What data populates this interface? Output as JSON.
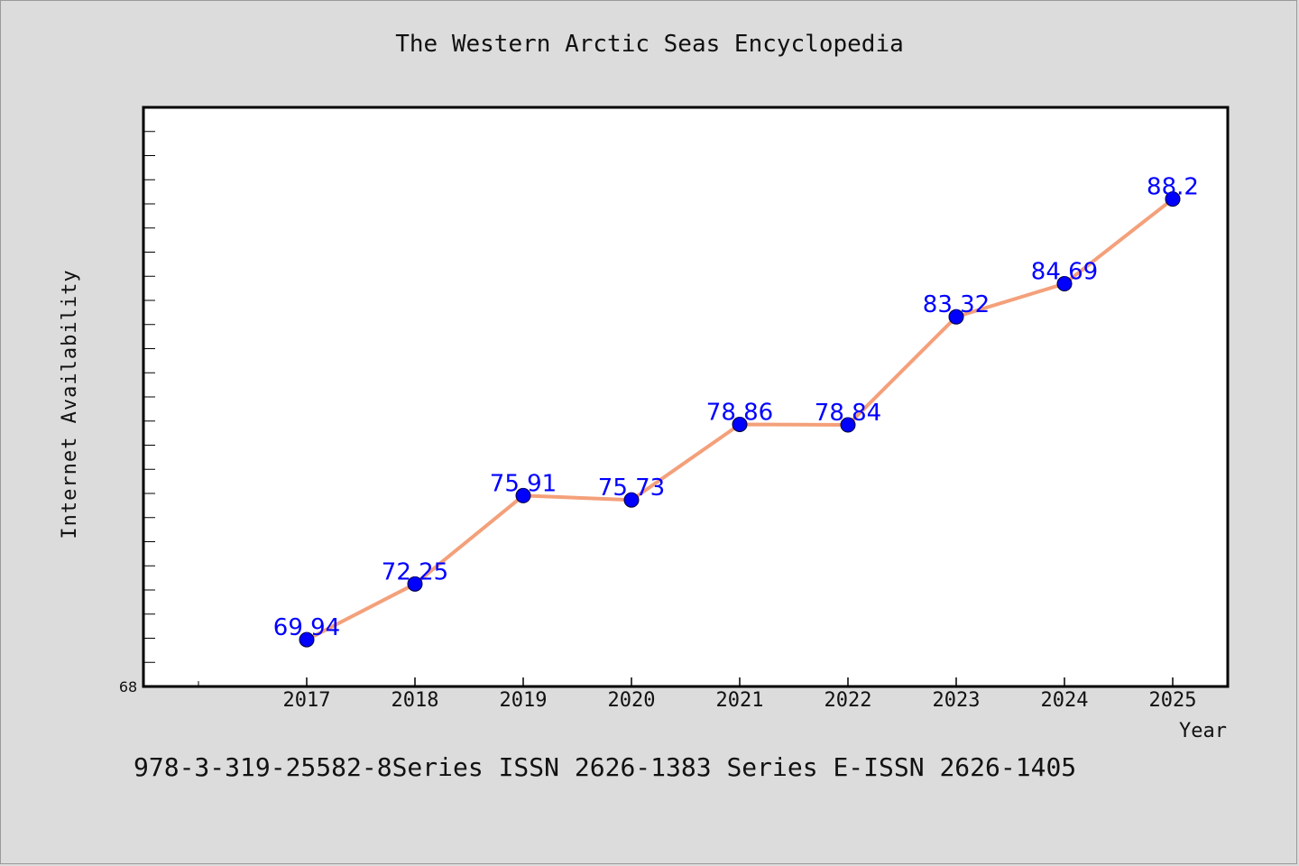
{
  "chart_data": {
    "type": "line",
    "title": "The Western Arctic Seas Encyclopedia",
    "xlabel": "Year",
    "ylabel": "Internet Availability",
    "categories": [
      "2017",
      "2018",
      "2019",
      "2020",
      "2021",
      "2022",
      "2023",
      "2024",
      "2025"
    ],
    "series": [
      {
        "values": [
          69.94,
          72.25,
          75.91,
          75.73,
          78.86,
          78.84,
          83.32,
          84.69,
          88.2
        ],
        "line_color": "#f4a07a",
        "marker_color": "#0000ff",
        "label_color": "#0000ff"
      }
    ],
    "ylim": [
      68,
      92
    ],
    "y_tick_labels": [
      "68"
    ],
    "grid": false,
    "legend": "none",
    "data_labels": [
      "69.94",
      "72.25",
      "75.91",
      "75.73",
      "78.86",
      "78.84",
      "83.32",
      "84.69",
      "88.2"
    ]
  },
  "footer": {
    "text": "978-3-319-25582-8Series ISSN 2626-1383 Series E-ISSN 2626-1405"
  },
  "colors": {
    "background": "#dcdcdc",
    "plot_background": "#ffffff",
    "axis": "#000000"
  }
}
